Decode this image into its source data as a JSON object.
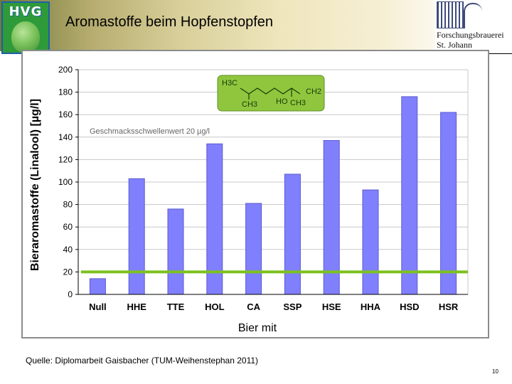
{
  "header": {
    "title": "Aromastoffe beim Hopfenstopfen",
    "logo_left_text": "HVG",
    "logo_right_lines": [
      "Forschungsbrauerei",
      "St. Johann"
    ]
  },
  "chart_data": {
    "type": "bar",
    "categories": [
      "Null",
      "HHE",
      "TTE",
      "HOL",
      "CA",
      "SSP",
      "HSE",
      "HHA",
      "HSD",
      "HSR"
    ],
    "values": [
      14,
      103,
      76,
      134,
      81,
      107,
      137,
      93,
      176,
      162
    ],
    "ylabel": "Bieraromastoffe (Linalool) [µg/l]",
    "xlabel": "Bier mit",
    "ylim": [
      0,
      200
    ],
    "yticks": [
      0,
      20,
      40,
      60,
      80,
      100,
      120,
      140,
      160,
      180,
      200
    ],
    "grid": true,
    "threshold": {
      "value": 20,
      "label": "Geschmacksschwellenwert 20 µg/l"
    },
    "molecule_labels": [
      "H3C",
      "CH2",
      "CH3",
      "HO",
      "CH3"
    ],
    "colors": {
      "bar": "#8080ff",
      "bar_edge": "#5a5acc",
      "threshold": "#7cc11f",
      "grid": "#c8c8c8",
      "inset": "#8fc63e"
    }
  },
  "footer": {
    "source": "Quelle: Diplomarbeit Gaisbacher (TUM-Weihenstephan 2011)",
    "page": "10"
  }
}
